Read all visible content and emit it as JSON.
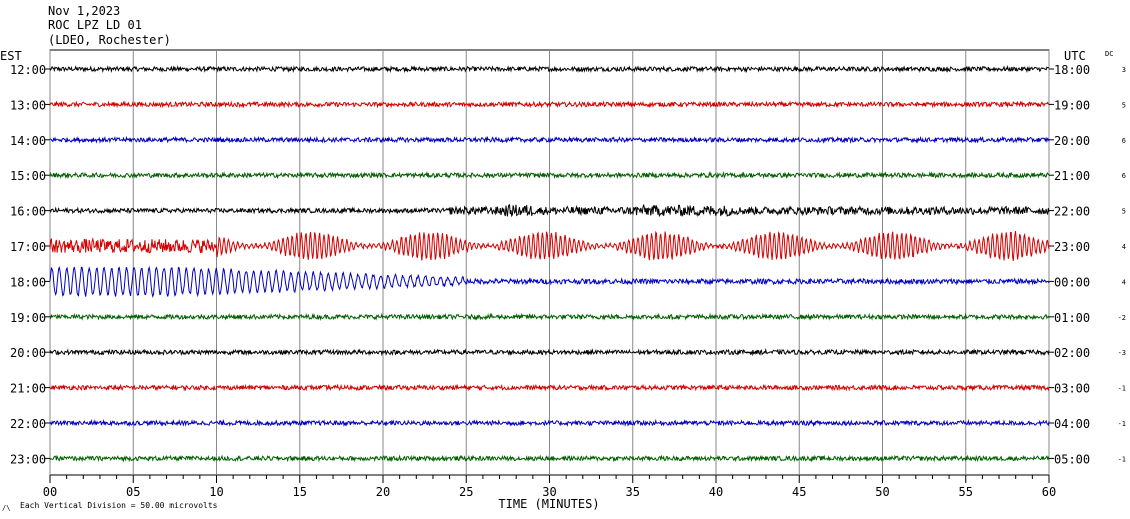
{
  "header": {
    "date": "Nov 1,2023",
    "station": "ROC LPZ LD 01",
    "network": "(LDEO, Rochester)"
  },
  "axes": {
    "left_title": "EST",
    "right_title": "UTC",
    "dc_title": "DC",
    "x_title": "TIME (MINUTES)",
    "scale_note": "Each Vertical Division =   50.00 microvolts"
  },
  "colors": {
    "black": "#000000",
    "red": "#d40000",
    "blue": "#0000c0",
    "green": "#006000",
    "grid": "#888888"
  },
  "chart_data": {
    "type": "line",
    "title": "ROC LPZ LD 01",
    "xlabel": "TIME (MINUTES)",
    "xlim": [
      0,
      60
    ],
    "x_ticks": [
      "00",
      "05",
      "10",
      "15",
      "20",
      "25",
      "30",
      "35",
      "40",
      "45",
      "50",
      "55",
      "60"
    ],
    "rows": [
      {
        "est": "12:00",
        "utc": "18:00",
        "dc": "3",
        "color": "black",
        "amplitude": "low"
      },
      {
        "est": "13:00",
        "utc": "19:00",
        "dc": "5",
        "color": "red",
        "amplitude": "low"
      },
      {
        "est": "14:00",
        "utc": "20:00",
        "dc": "6",
        "color": "blue",
        "amplitude": "low"
      },
      {
        "est": "15:00",
        "utc": "21:00",
        "dc": "6",
        "color": "green",
        "amplitude": "low"
      },
      {
        "est": "16:00",
        "utc": "22:00",
        "dc": "5",
        "color": "black",
        "amplitude": "moderate, increasing after minute 24"
      },
      {
        "est": "17:00",
        "utc": "23:00",
        "dc": "4",
        "color": "red",
        "amplitude": "high, teleseismic surface waves"
      },
      {
        "est": "18:00",
        "utc": "00:00",
        "dc": "4",
        "color": "blue",
        "amplitude": "high at start, decaying to minute 25"
      },
      {
        "est": "19:00",
        "utc": "01:00",
        "dc": "-2",
        "color": "green",
        "amplitude": "low"
      },
      {
        "est": "20:00",
        "utc": "02:00",
        "dc": "-3",
        "color": "black",
        "amplitude": "low"
      },
      {
        "est": "21:00",
        "utc": "03:00",
        "dc": "-1",
        "color": "red",
        "amplitude": "low"
      },
      {
        "est": "22:00",
        "utc": "04:00",
        "dc": "-1",
        "color": "blue",
        "amplitude": "low"
      },
      {
        "est": "23:00",
        "utc": "05:00",
        "dc": "-1",
        "color": "green",
        "amplitude": "low"
      }
    ]
  }
}
